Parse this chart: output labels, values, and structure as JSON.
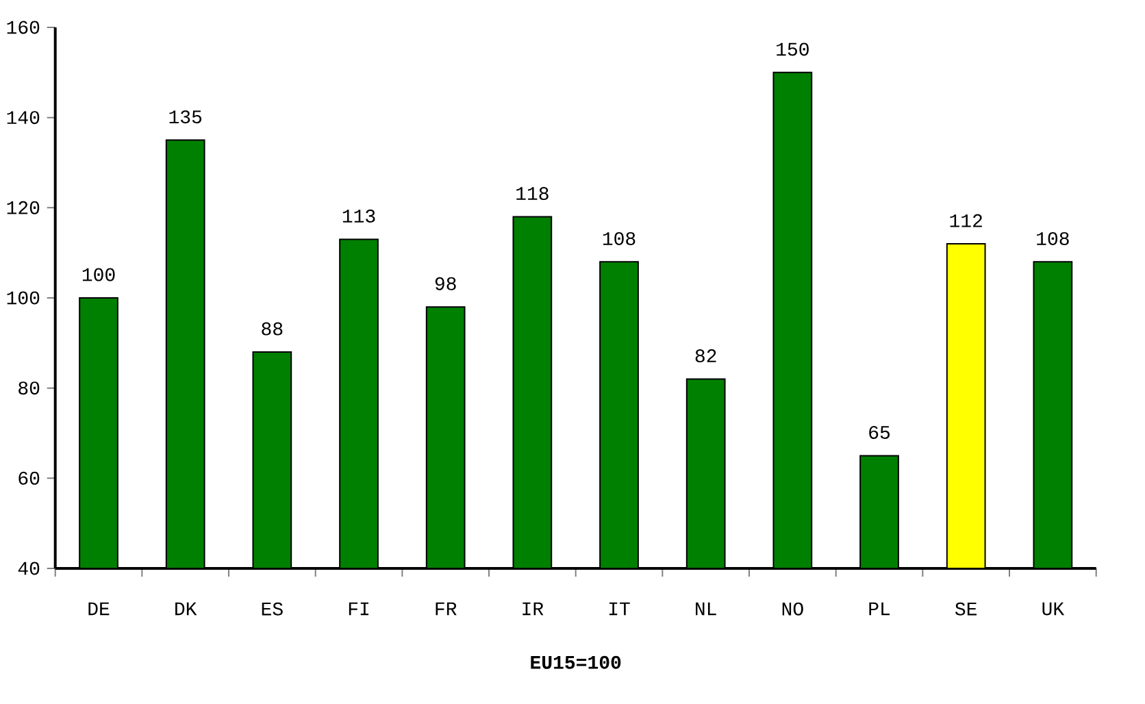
{
  "chart_data": {
    "type": "bar",
    "xlabel": "**EU15=100**",
    "categories": [
      "DE",
      "DK",
      "ES",
      "FI",
      "FR",
      "IR",
      "IT",
      "NL",
      "NO",
      "PL",
      "SE",
      "UK"
    ],
    "values": [
      100,
      135,
      88,
      113,
      98,
      118,
      108,
      82,
      150,
      65,
      112,
      108
    ],
    "colors": [
      "#008000",
      "#008000",
      "#008000",
      "#008000",
      "#008000",
      "#008000",
      "#008000",
      "#008000",
      "#008000",
      "#008000",
      "#ffff00",
      "#008000"
    ],
    "ylim": [
      40,
      160
    ],
    "yticks": [
      40,
      60,
      80,
      100,
      120,
      140,
      160
    ],
    "data_labels": true,
    "grid": false
  }
}
